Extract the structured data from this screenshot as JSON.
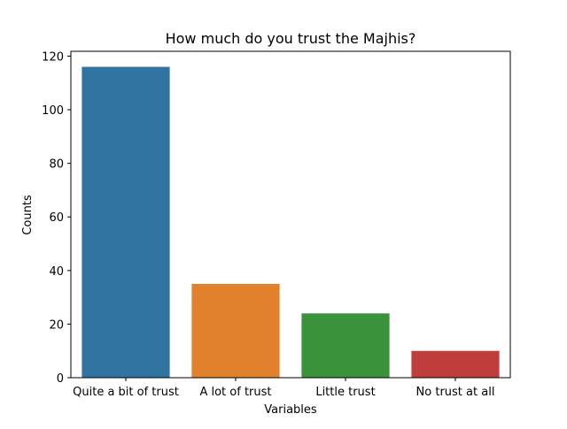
{
  "chart_data": {
    "type": "bar",
    "title": "How much do you trust the Majhis?",
    "xlabel": "Variables",
    "ylabel": "Counts",
    "categories": [
      "Quite a bit of trust",
      "A lot of trust",
      "Little trust",
      "No trust at all"
    ],
    "values": [
      116,
      35,
      24,
      10
    ],
    "colors": [
      "#3274a1",
      "#e1812c",
      "#3a923a",
      "#c03d3e"
    ],
    "ylim": [
      0,
      121.8
    ],
    "yticks": [
      0,
      20,
      40,
      60,
      80,
      100,
      120
    ],
    "grid": false,
    "legend": "none"
  }
}
